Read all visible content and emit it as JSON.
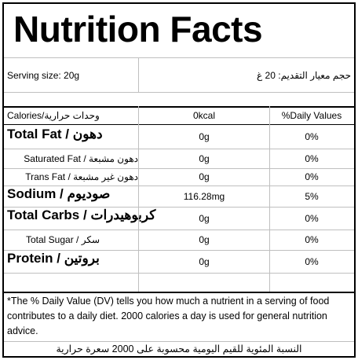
{
  "title": "Nutrition Facts",
  "serving": {
    "label": "Serving size: 20g",
    "label_ar": "حجم معيار التقديم: 20 غ"
  },
  "header": {
    "calories_label": "Calories/وحدات حرارية",
    "calories_value": "0kcal",
    "daily_values_label": "%Daily Values"
  },
  "rows": [
    {
      "name": "Total Fat / دهون",
      "amount": "0g",
      "dv": "0%"
    },
    {
      "name": "Saturated Fat / دهون مشبعة",
      "amount": "0g",
      "dv": "0%"
    },
    {
      "name": "Trans Fat / دهون غير مشبعة",
      "amount": "0g",
      "dv": "0%"
    },
    {
      "name": "Sodium / صوديوم",
      "amount": "116.28mg",
      "dv": "5%"
    },
    {
      "name": "Total Carbs / كربوهيدرات",
      "amount": "0g",
      "dv": "0%"
    },
    {
      "name": "Total Sugar / سكر",
      "amount": "0g",
      "dv": "0%"
    },
    {
      "name": "Protein / بروتين",
      "amount": "0g",
      "dv": "0%"
    }
  ],
  "footnote": "*The % Daily Value (DV) tells you how much a nutrient in a serving of food contributes to a daily diet. 2000 calories a day is used for general nutrition advice.",
  "footnote_ar": "النسبة المئوية للقيم اليومية محسوبة على 2000 سعرة حرارية"
}
